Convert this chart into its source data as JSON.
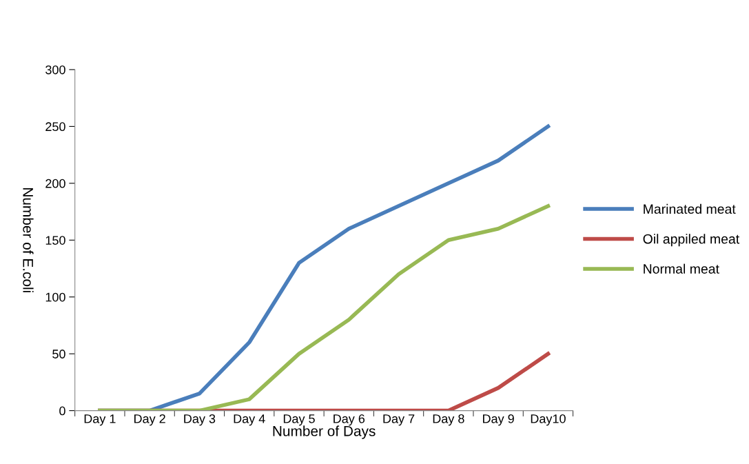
{
  "chart_data": {
    "type": "line",
    "xlabel": "Number of Days",
    "ylabel": "Number of E.coli",
    "categories": [
      "Day 1",
      "Day 2",
      "Day 3",
      "Day 4",
      "Day 5",
      "Day 6",
      "Day 7",
      "Day 8",
      "Day 9",
      "Day10"
    ],
    "series": [
      {
        "name": "Marinated meat",
        "color": "#4a7ebb",
        "values": [
          0,
          0,
          15,
          60,
          130,
          160,
          180,
          200,
          220,
          250
        ]
      },
      {
        "name": "Oil appiled meat",
        "color": "#be4b48",
        "values": [
          0,
          0,
          0,
          0,
          0,
          0,
          0,
          0,
          20,
          50
        ]
      },
      {
        "name": "Normal meat",
        "color": "#98b954",
        "values": [
          0,
          0,
          0,
          10,
          50,
          80,
          120,
          150,
          160,
          180
        ]
      }
    ],
    "ylim": [
      0,
      300
    ],
    "yticks": [
      0,
      50,
      100,
      150,
      200,
      250,
      300
    ],
    "grid": false,
    "legend": "right",
    "marker": "none",
    "line_style": "solid"
  }
}
